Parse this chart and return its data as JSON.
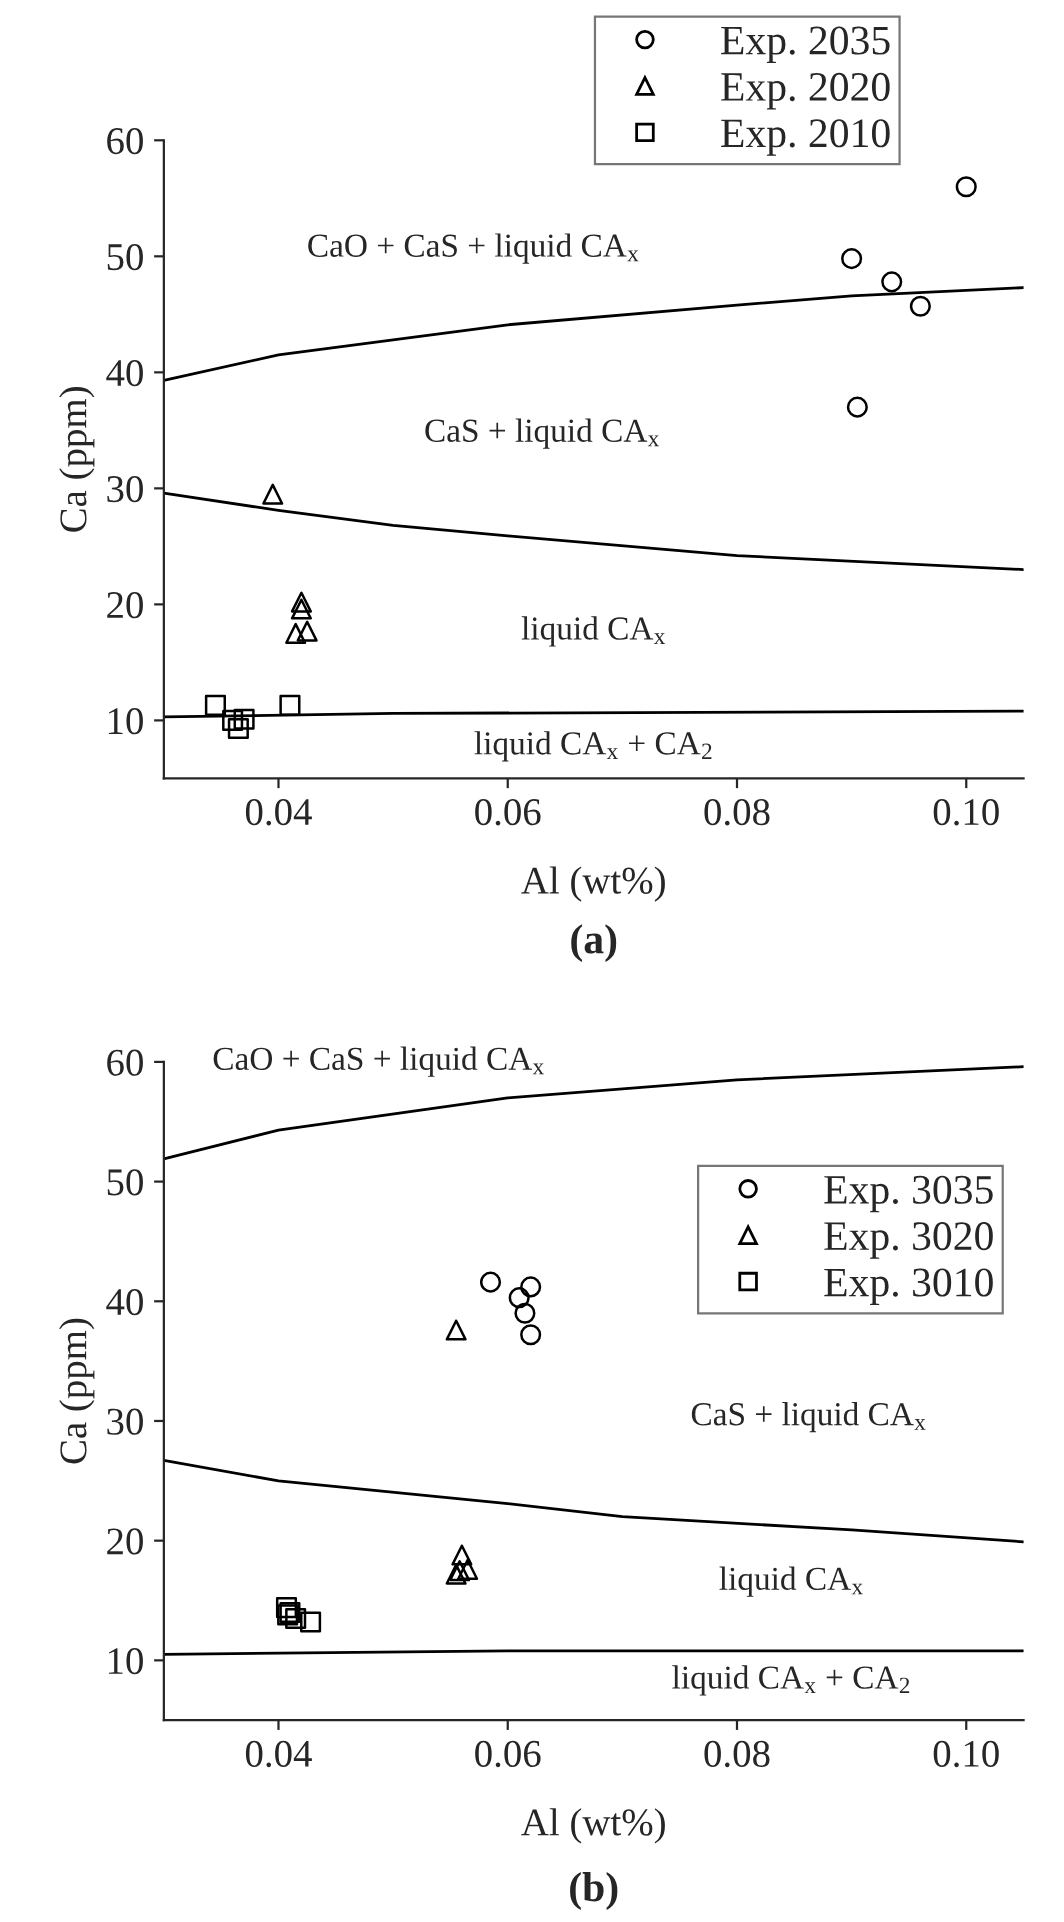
{
  "chart_data": [
    {
      "type": "scatter",
      "title": "(a)",
      "xlabel": "Al (wt%)",
      "ylabel": "Ca (ppm)",
      "xlim": [
        0.03,
        0.105
      ],
      "ylim": [
        5,
        60
      ],
      "xticks": [
        0.04,
        0.06,
        0.08,
        {
          "value": 0.1,
          "label": "0.10"
        }
      ],
      "yticks": [
        10,
        20,
        30,
        40,
        50,
        60
      ],
      "grid": false,
      "legend": "top right",
      "series": [
        {
          "name": "Exp. 2035",
          "marker": "circle",
          "color": "#000000",
          "x": [
            0.09,
            0.0935,
            0.096,
            0.1,
            0.0905
          ],
          "values": [
            49.8,
            47.8,
            45.7,
            56,
            37
          ]
        },
        {
          "name": "Exp. 2020",
          "marker": "triangle",
          "color": "#000000",
          "x": [
            0.0395,
            0.042,
            0.042,
            0.0415,
            0.0425
          ],
          "values": [
            29.5,
            20.2,
            19.6,
            17.5,
            17.7
          ]
        },
        {
          "name": "Exp. 2010",
          "marker": "square",
          "color": "#000000",
          "x": [
            0.0345,
            0.036,
            0.0365,
            0.037,
            0.041
          ],
          "values": [
            11.3,
            10.0,
            9.3,
            10.1,
            11.3
          ]
        },
        {
          "type": "line",
          "color": "#000000",
          "x": [
            0.03,
            0.04,
            0.06,
            0.08,
            0.09,
            0.105
          ],
          "values": [
            39.3,
            41.5,
            44.1,
            45.8,
            46.6,
            47.3
          ]
        },
        {
          "type": "line",
          "color": "#000000",
          "x": [
            0.03,
            0.04,
            0.05,
            0.06,
            0.08,
            0.105
          ],
          "values": [
            29.6,
            28.1,
            26.8,
            25.9,
            24.2,
            23.0
          ]
        },
        {
          "type": "line",
          "color": "#000000",
          "x": [
            0.03,
            0.05,
            0.105
          ],
          "values": [
            10.3,
            10.6,
            10.8
          ]
        }
      ],
      "annotations": [
        "CaO + CaS + liquid CA$_{x}$",
        "CaS + liquid CA$_{x}$",
        "liquid CA$_{x}$",
        "liquid CA$_{x}$ + CA$_{2}$"
      ]
    },
    {
      "type": "scatter",
      "title": "(b)",
      "xlabel": "Al (wt%)",
      "ylabel": "Ca (ppm)",
      "xlim": [
        0.03,
        0.105
      ],
      "ylim": [
        5,
        60
      ],
      "xticks": [
        0.04,
        0.06,
        0.08,
        {
          "value": 0.1,
          "label": "0.10"
        }
      ],
      "yticks": [
        10,
        20,
        30,
        40,
        50,
        60
      ],
      "grid": false,
      "legend": "right",
      "series": [
        {
          "name": "Exp. 3035",
          "marker": "circle",
          "color": "#000000",
          "x": [
            0.0585,
            0.061,
            0.062,
            0.0615,
            0.062
          ],
          "values": [
            41.6,
            40.3,
            41.2,
            39,
            37.2
          ]
        },
        {
          "name": "Exp. 3020",
          "marker": "triangle",
          "color": "#000000",
          "x": [
            0.0555,
            0.0555,
            0.0558,
            0.056,
            0.0565
          ],
          "values": [
            37.6,
            17.2,
            17.5,
            18.8,
            17.6
          ]
        },
        {
          "name": "Exp. 3010",
          "marker": "square",
          "color": "#000000",
          "x": [
            0.0407,
            0.041,
            0.0408,
            0.0415,
            0.0428
          ],
          "values": [
            14.4,
            14.0,
            13.8,
            13.5,
            13.2
          ]
        },
        {
          "type": "line",
          "color": "#000000",
          "x": [
            0.03,
            0.04,
            0.06,
            0.08,
            0.105
          ],
          "values": [
            51.9,
            54.3,
            57.0,
            58.5,
            59.6
          ]
        },
        {
          "type": "line",
          "color": "#000000",
          "x": [
            0.03,
            0.04,
            0.06,
            0.07,
            0.09,
            0.105
          ],
          "values": [
            26.7,
            25.0,
            23.1,
            22.0,
            20.9,
            19.9
          ]
        },
        {
          "type": "line",
          "color": "#000000",
          "x": [
            0.03,
            0.06,
            0.105
          ],
          "values": [
            10.5,
            10.8,
            10.8
          ]
        }
      ],
      "annotations": [
        "CaO + CaS + liquid CA$_{x}$",
        "CaS + liquid CA$_{x}$",
        "liquid CA$_{x}$",
        "liquid CA$_{x}$ + CA$_{2}$"
      ]
    }
  ]
}
